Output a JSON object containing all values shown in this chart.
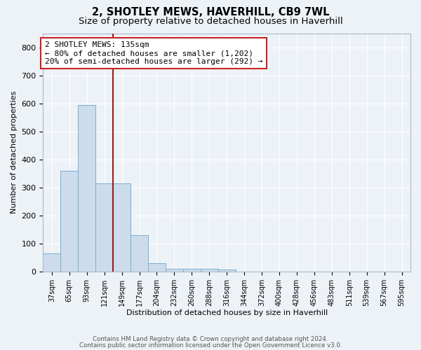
{
  "title": "2, SHOTLEY MEWS, HAVERHILL, CB9 7WL",
  "subtitle": "Size of property relative to detached houses in Haverhill",
  "xlabel": "Distribution of detached houses by size in Haverhill",
  "ylabel": "Number of detached properties",
  "bar_labels": [
    "37sqm",
    "65sqm",
    "93sqm",
    "121sqm",
    "149sqm",
    "177sqm",
    "204sqm",
    "232sqm",
    "260sqm",
    "288sqm",
    "316sqm",
    "344sqm",
    "372sqm",
    "400sqm",
    "428sqm",
    "456sqm",
    "483sqm",
    "511sqm",
    "539sqm",
    "567sqm",
    "595sqm"
  ],
  "bar_heights": [
    65,
    360,
    595,
    315,
    315,
    130,
    30,
    10,
    10,
    10,
    8,
    0,
    0,
    0,
    0,
    0,
    0,
    0,
    0,
    0,
    0
  ],
  "bar_color": "#ccdcec",
  "bar_edgecolor": "#7aadcf",
  "vline_color": "#9b1c1c",
  "annotation_text": "2 SHOTLEY MEWS: 135sqm\n← 80% of detached houses are smaller (1,202)\n20% of semi-detached houses are larger (292) →",
  "annotation_box_color": "#ffffff",
  "annotation_box_edgecolor": "#cc2222",
  "ylim": [
    0,
    850
  ],
  "yticks": [
    0,
    100,
    200,
    300,
    400,
    500,
    600,
    700,
    800
  ],
  "bg_color": "#edf2f7",
  "grid_color": "#ffffff",
  "footer_line1": "Contains HM Land Registry data © Crown copyright and database right 2024.",
  "footer_line2": "Contains public sector information licensed under the Open Government Licence v3.0.",
  "title_fontsize": 10.5,
  "subtitle_fontsize": 9.5,
  "annotation_fontsize": 8.0,
  "axis_label_fontsize": 8.0,
  "tick_fontsize": 7.0,
  "ytick_fontsize": 8.0,
  "bar_width": 1.0,
  "vline_pos": 3.5
}
